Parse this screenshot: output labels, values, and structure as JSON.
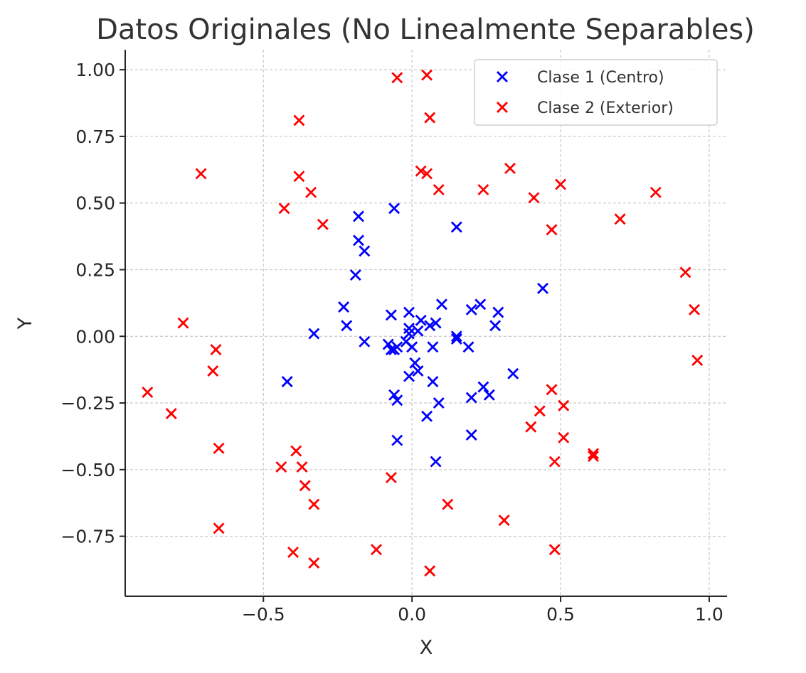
{
  "chart_data": {
    "type": "scatter",
    "title": "Datos Originales (No Linealmente Separables)",
    "xlabel": "X",
    "ylabel": "Y",
    "xlim": [
      -0.965,
      1.06
    ],
    "ylim": [
      -0.975,
      1.075
    ],
    "xticks": [
      -0.5,
      0.0,
      0.5,
      1.0
    ],
    "xtick_labels": [
      "−0.5",
      "0.0",
      "0.5",
      "1.0"
    ],
    "yticks": [
      1.0,
      0.75,
      0.5,
      0.25,
      0.0,
      -0.25,
      -0.5,
      -0.75
    ],
    "ytick_labels": [
      "1.00",
      "0.75",
      "0.50",
      "0.25",
      "0.00",
      "−0.25",
      "−0.50",
      "−0.75"
    ],
    "grid": true,
    "legend_position": "top-right",
    "marker": "x",
    "series": [
      {
        "name": "Clase 1 (Centro)",
        "color": "#0000ff",
        "points": [
          [
            -0.06,
            0.48
          ],
          [
            0.15,
            0.41
          ],
          [
            -0.18,
            0.45
          ],
          [
            -0.18,
            0.36
          ],
          [
            -0.16,
            0.32
          ],
          [
            -0.19,
            0.23
          ],
          [
            0.44,
            0.18
          ],
          [
            -0.23,
            0.11
          ],
          [
            -0.22,
            0.04
          ],
          [
            -0.33,
            0.01
          ],
          [
            -0.16,
            -0.02
          ],
          [
            -0.07,
            0.08
          ],
          [
            -0.01,
            0.09
          ],
          [
            0.03,
            0.06
          ],
          [
            0.1,
            0.12
          ],
          [
            0.2,
            0.1
          ],
          [
            0.23,
            0.12
          ],
          [
            0.29,
            0.09
          ],
          [
            0.28,
            0.04
          ],
          [
            0.08,
            0.05
          ],
          [
            0.06,
            0.04
          ],
          [
            -0.01,
            0.03
          ],
          [
            -0.01,
            0.01
          ],
          [
            0.02,
            0.02
          ],
          [
            0.15,
            0.0
          ],
          [
            0.15,
            -0.01
          ],
          [
            0.19,
            -0.04
          ],
          [
            0.07,
            -0.04
          ],
          [
            -0.08,
            -0.03
          ],
          [
            -0.06,
            -0.05
          ],
          [
            -0.05,
            -0.04
          ],
          [
            -0.07,
            -0.05
          ],
          [
            -0.02,
            -0.02
          ],
          [
            0.0,
            -0.04
          ],
          [
            0.01,
            -0.1
          ],
          [
            0.02,
            -0.13
          ],
          [
            -0.01,
            -0.15
          ],
          [
            -0.06,
            -0.22
          ],
          [
            -0.05,
            -0.24
          ],
          [
            0.07,
            -0.17
          ],
          [
            0.09,
            -0.25
          ],
          [
            0.05,
            -0.3
          ],
          [
            -0.05,
            -0.39
          ],
          [
            0.2,
            -0.23
          ],
          [
            0.24,
            -0.19
          ],
          [
            0.26,
            -0.22
          ],
          [
            0.34,
            -0.14
          ],
          [
            0.2,
            -0.37
          ],
          [
            0.08,
            -0.47
          ],
          [
            -0.42,
            -0.17
          ]
        ]
      },
      {
        "name": "Clase 2 (Exterior)",
        "color": "#ff0000",
        "points": [
          [
            -0.05,
            0.97
          ],
          [
            0.05,
            0.98
          ],
          [
            0.06,
            0.82
          ],
          [
            -0.38,
            0.81
          ],
          [
            -0.71,
            0.61
          ],
          [
            -0.38,
            0.6
          ],
          [
            -0.34,
            0.54
          ],
          [
            -0.43,
            0.48
          ],
          [
            -0.3,
            0.42
          ],
          [
            0.03,
            0.62
          ],
          [
            0.05,
            0.61
          ],
          [
            0.09,
            0.55
          ],
          [
            0.24,
            0.55
          ],
          [
            0.33,
            0.63
          ],
          [
            0.41,
            0.52
          ],
          [
            0.5,
            0.57
          ],
          [
            0.47,
            0.4
          ],
          [
            0.7,
            0.44
          ],
          [
            0.82,
            0.54
          ],
          [
            0.92,
            0.24
          ],
          [
            0.95,
            0.1
          ],
          [
            0.96,
            -0.09
          ],
          [
            -0.77,
            0.05
          ],
          [
            -0.66,
            -0.05
          ],
          [
            -0.67,
            -0.13
          ],
          [
            -0.89,
            -0.21
          ],
          [
            -0.81,
            -0.29
          ],
          [
            -0.65,
            -0.42
          ],
          [
            -0.65,
            -0.72
          ],
          [
            -0.39,
            -0.43
          ],
          [
            -0.44,
            -0.49
          ],
          [
            -0.37,
            -0.49
          ],
          [
            -0.36,
            -0.56
          ],
          [
            -0.33,
            -0.63
          ],
          [
            -0.4,
            -0.81
          ],
          [
            -0.33,
            -0.85
          ],
          [
            -0.12,
            -0.8
          ],
          [
            -0.07,
            -0.53
          ],
          [
            0.06,
            -0.88
          ],
          [
            0.12,
            -0.63
          ],
          [
            0.31,
            -0.69
          ],
          [
            0.4,
            -0.34
          ],
          [
            0.43,
            -0.28
          ],
          [
            0.47,
            -0.2
          ],
          [
            0.51,
            -0.26
          ],
          [
            0.51,
            -0.38
          ],
          [
            0.48,
            -0.47
          ],
          [
            0.61,
            -0.44
          ],
          [
            0.61,
            -0.45
          ],
          [
            0.48,
            -0.8
          ]
        ]
      }
    ]
  }
}
